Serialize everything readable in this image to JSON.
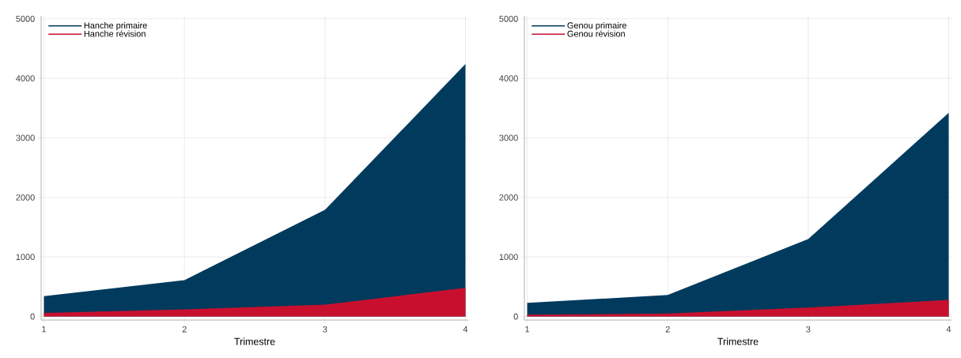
{
  "chart_data": [
    {
      "type": "area",
      "xlabel": "Trimestre",
      "x": [
        1,
        2,
        3,
        4
      ],
      "xlim": [
        0.98,
        4.02
      ],
      "xticks": [
        1,
        2,
        3,
        4
      ],
      "ylim": [
        -60,
        5050
      ],
      "yticks": [
        0,
        1000,
        2000,
        3000,
        4000,
        5000
      ],
      "grid": true,
      "legend": "top left",
      "series": [
        {
          "name": "Hanche primaire",
          "color": "#003a5d",
          "values": [
            340,
            610,
            1790,
            4240
          ]
        },
        {
          "name": "Hanche révision",
          "color": "#c8102e",
          "values": [
            60,
            120,
            200,
            480
          ]
        }
      ]
    },
    {
      "type": "area",
      "xlabel": "Trimestre",
      "x": [
        1,
        2,
        3,
        4
      ],
      "xlim": [
        0.98,
        4.02
      ],
      "xticks": [
        1,
        2,
        3,
        4
      ],
      "ylim": [
        -60,
        5050
      ],
      "yticks": [
        0,
        1000,
        2000,
        3000,
        4000,
        5000
      ],
      "grid": true,
      "legend": "top left",
      "series": [
        {
          "name": "Genou primaire",
          "color": "#003a5d",
          "values": [
            230,
            360,
            1300,
            3420
          ]
        },
        {
          "name": "Genou révision",
          "color": "#c8102e",
          "values": [
            30,
            50,
            150,
            280
          ]
        }
      ]
    }
  ]
}
